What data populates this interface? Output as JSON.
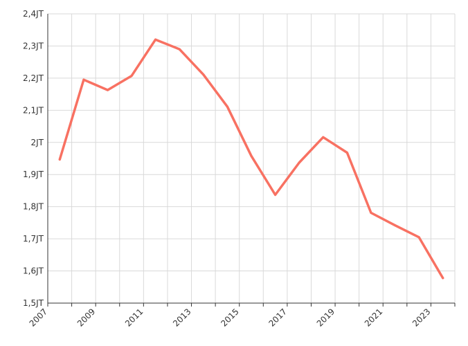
{
  "chart_data": {
    "type": "line",
    "title": "",
    "xlabel": "",
    "ylabel": "",
    "x_ticks": [
      "2007",
      "2009",
      "2011",
      "2013",
      "2015",
      "2017",
      "2019",
      "2021",
      "2023"
    ],
    "y_ticks": [
      "1,5JT",
      "1,6JT",
      "1,7JT",
      "1,8JT",
      "1,9JT",
      "2JT",
      "2,1JT",
      "2,2JT",
      "2,3JT",
      "2,4JT"
    ],
    "ylim": [
      1500000,
      2400000
    ],
    "xlim": [
      2007,
      2024
    ],
    "grid": true,
    "series": [
      {
        "color": "#f87162",
        "x": [
          2007.5,
          2008.5,
          2009.5,
          2010.5,
          2011.5,
          2012.5,
          2013.5,
          2014.5,
          2015.5,
          2016.5,
          2017.5,
          2018.5,
          2019.5,
          2020.5,
          2021.5,
          2022.5,
          2023.5
        ],
        "values": [
          1947000,
          2195000,
          2163000,
          2207000,
          2320000,
          2290000,
          2211000,
          2111000,
          1958000,
          1837000,
          1937000,
          2016000,
          1968000,
          1781000,
          1742000,
          1705000,
          1578000
        ]
      }
    ]
  }
}
